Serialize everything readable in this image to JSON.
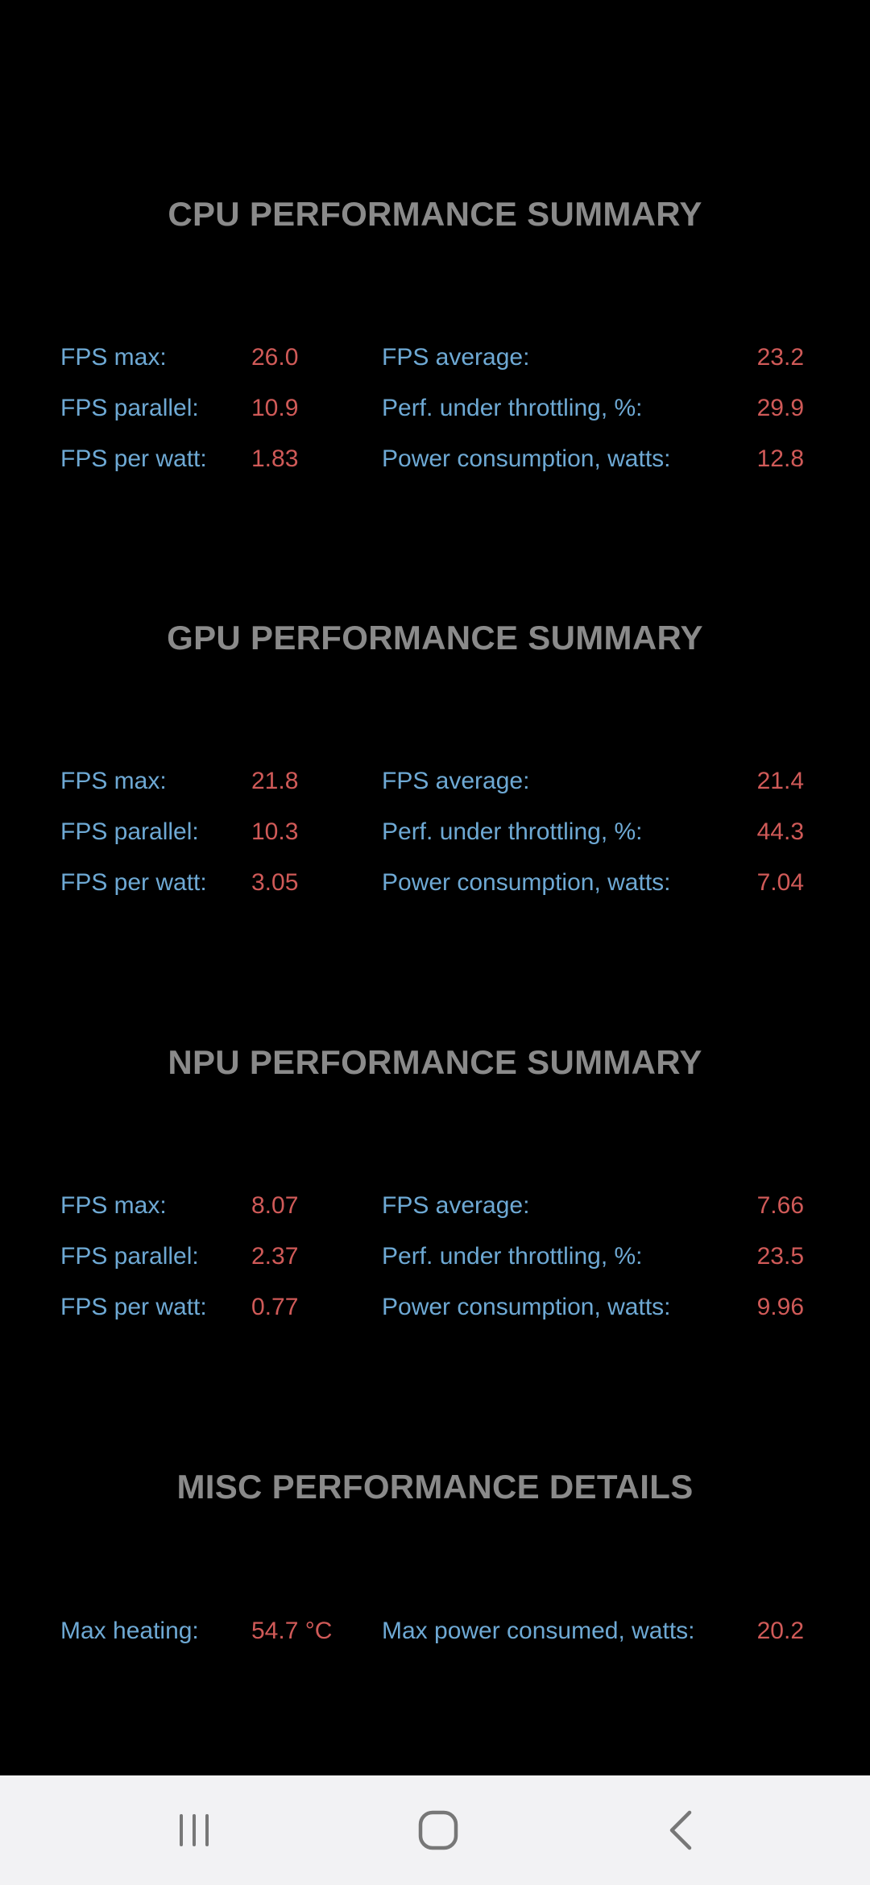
{
  "sections": {
    "cpu": {
      "title": "CPU PERFORMANCE SUMMARY",
      "rows": [
        {
          "label_left": "FPS max:",
          "value_left": "26.0",
          "label_right": "FPS average:",
          "value_right": "23.2"
        },
        {
          "label_left": "FPS parallel:",
          "value_left": "10.9",
          "label_right": "Perf. under throttling, %:",
          "value_right": "29.9"
        },
        {
          "label_left": "FPS per watt:",
          "value_left": "1.83",
          "label_right": "Power consumption, watts:",
          "value_right": "12.8"
        }
      ]
    },
    "gpu": {
      "title": "GPU PERFORMANCE SUMMARY",
      "rows": [
        {
          "label_left": "FPS max:",
          "value_left": "21.8",
          "label_right": "FPS average:",
          "value_right": "21.4"
        },
        {
          "label_left": "FPS parallel:",
          "value_left": "10.3",
          "label_right": "Perf. under throttling, %:",
          "value_right": "44.3"
        },
        {
          "label_left": "FPS per watt:",
          "value_left": "3.05",
          "label_right": "Power consumption, watts:",
          "value_right": "7.04"
        }
      ]
    },
    "npu": {
      "title": "NPU PERFORMANCE SUMMARY",
      "rows": [
        {
          "label_left": "FPS max:",
          "value_left": "8.07",
          "label_right": "FPS average:",
          "value_right": "7.66"
        },
        {
          "label_left": "FPS parallel:",
          "value_left": "2.37",
          "label_right": "Perf. under throttling, %:",
          "value_right": "23.5"
        },
        {
          "label_left": "FPS per watt:",
          "value_left": "0.77",
          "label_right": "Power consumption, watts:",
          "value_right": "9.96"
        }
      ]
    },
    "misc": {
      "title": "MISC PERFORMANCE DETAILS",
      "rows": [
        {
          "label_left": "Max heating:",
          "value_left": "54.7 °C",
          "label_right": "Max power consumed, watts:",
          "value_right": "20.2"
        }
      ]
    }
  },
  "colors": {
    "background": "#000000",
    "title": "#8a8a8a",
    "label": "#6ea9d4",
    "value": "#d05a58",
    "navbar": "#f2f2f4",
    "nav_icon": "#777777"
  },
  "navbar": {
    "icons": [
      "recent-apps-icon",
      "home-icon",
      "back-icon"
    ]
  }
}
